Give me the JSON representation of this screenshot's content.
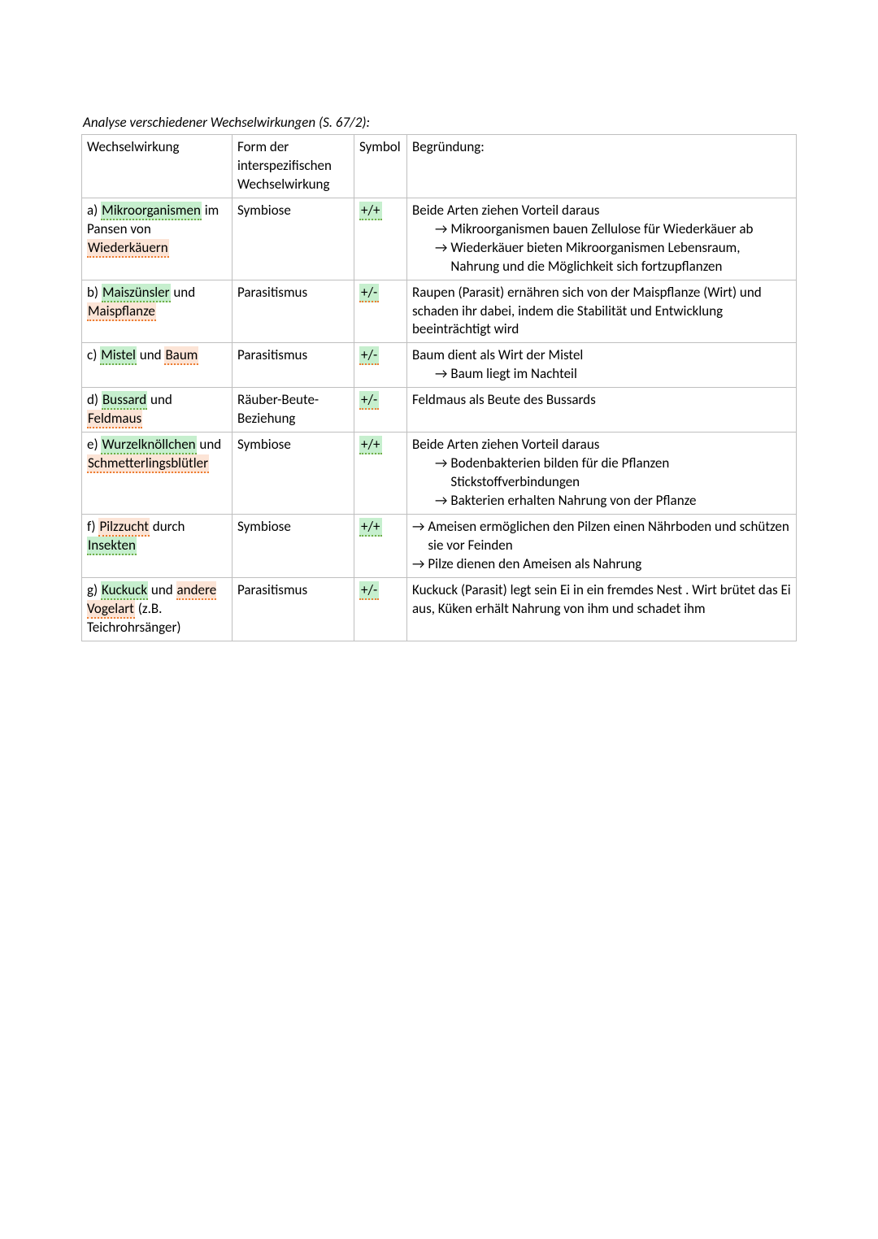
{
  "title": "Analyse verschiedener Wechselwirkungen (S. 67/2):",
  "headers": {
    "c1": "Wechselwirkung",
    "c2": "Form der interspezifischen Wechselwirkung",
    "c3": "Symbol",
    "c4": "Begründung:"
  },
  "highlight_colors": {
    "green_bg": "#c6efce",
    "green_underline": "#70ad47",
    "orange_bg": "#fce4d6",
    "orange_underline": "#ed7d31"
  },
  "rows": {
    "a": {
      "label_pre": "a) ",
      "hl1": "Mikroorganismen",
      "mid1": " im Pansen von ",
      "hl2": "Wiederkäuern",
      "form": "Symbiose",
      "symbol": "+/+",
      "reason_main": "Beide Arten ziehen Vorteil daraus",
      "arrow1": "Mikroorganismen bauen Zellulose für Wiederkäuer ab",
      "arrow2": "Wiederkäuer bieten Mikroorganismen Lebensraum, Nahrung und die Möglichkeit sich fortzupflanzen"
    },
    "b": {
      "label_pre": "b) ",
      "hl1": "Maiszünsler",
      "mid1": " und ",
      "hl2": "Maispflanze",
      "form": "Parasitismus",
      "symbol": "+/-",
      "reason_main": "Raupen (Parasit) ernähren sich von der Maispflanze (Wirt) und schaden ihr dabei, indem die Stabilität und Entwicklung beeinträchtigt wird"
    },
    "c": {
      "label_pre": "c) ",
      "hl1": "Mistel",
      "mid1": " und ",
      "hl2": "Baum",
      "form": "Parasitismus",
      "symbol": "+/-",
      "reason_main": "Baum dient als Wirt der Mistel",
      "arrow1": "Baum liegt im Nachteil"
    },
    "d": {
      "label_pre": "d) ",
      "hl1": "Bussard",
      "mid1": " und ",
      "hl2": "Feldmaus",
      "form": "Räuber-Beute-Beziehung",
      "symbol": "+/-",
      "reason_main": "Feldmaus als Beute des Bussards"
    },
    "e": {
      "label_pre": "e) ",
      "hl1": "Wurzelknöllchen",
      "mid1": " und ",
      "hl2": "Schmetterlingsblütler",
      "form": "Symbiose",
      "symbol": "+/+",
      "reason_main": "Beide Arten ziehen Vorteil daraus",
      "arrow1": "Bodenbakterien bilden für die Pflanzen Stickstoffverbindungen",
      "arrow2": "Bakterien erhalten Nahrung von der Pflanze"
    },
    "f": {
      "label_pre": "f) ",
      "hl1": "Pilzzucht",
      "mid1": " durch ",
      "hl2": "Insekten",
      "form": "Symbiose",
      "symbol": "+/+",
      "arrow1": "Ameisen ermöglichen den Pilzen einen Nährboden und schützen sie vor Feinden",
      "arrow2": "Pilze dienen den Ameisen als Nahrung"
    },
    "g": {
      "label_pre": "g) ",
      "hl1": "Kuckuck",
      "mid1": " und ",
      "hl2": "andere Vogelart",
      "tail": " (z.B. Teichrohrsänger)",
      "form": "Parasitismus",
      "symbol": "+/-",
      "reason_main": "Kuckuck (Parasit) legt sein Ei in ein fremdes Nest . Wirt brütet das Ei aus, Küken erhält Nahrung von ihm und schadet ihm"
    }
  },
  "arrow_glyph": "→"
}
